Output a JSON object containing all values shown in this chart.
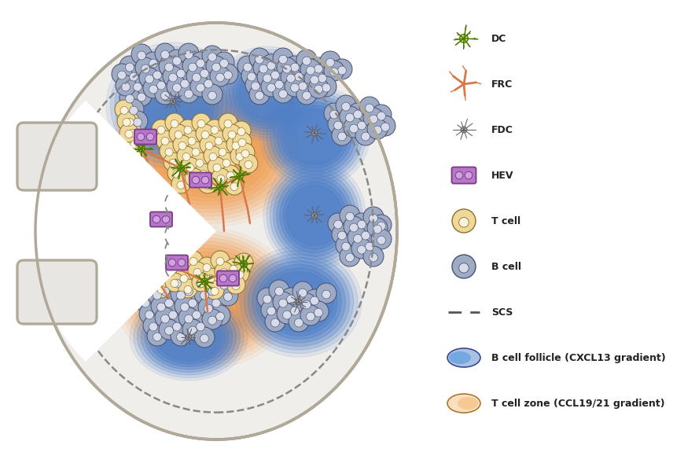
{
  "bg_color": "#ffffff",
  "b_cell_color": "#9eabc5",
  "b_cell_edge": "#4a5070",
  "b_cell_inner": "#d8dce8",
  "t_cell_color": "#f0d898",
  "t_cell_edge": "#8a7030",
  "t_cell_inner": "#faf4dc",
  "dc_fill": "#d8f080",
  "dc_edge": "#4a7800",
  "frc_color": "#d87848",
  "fdc_body": "#e0e0e8",
  "fdc_edge": "#606068",
  "hev_color": "#b878c8",
  "hev_edge": "#7a3a8a",
  "hev_inner": "#d0a0e0",
  "t_zone_color": "#f0a055",
  "b_follicle_color": "#5080c8",
  "outer_fill": "#f0eeea",
  "outer_edge": "#b0a898",
  "scs_color": "#888888",
  "legend_labels": [
    "DC",
    "FRC",
    "FDC",
    "HEV",
    "T cell",
    "B cell",
    "SCS",
    "B cell follicle (CXCL13 gradient)",
    "T cell zone (CCL19/21 gradient)"
  ]
}
